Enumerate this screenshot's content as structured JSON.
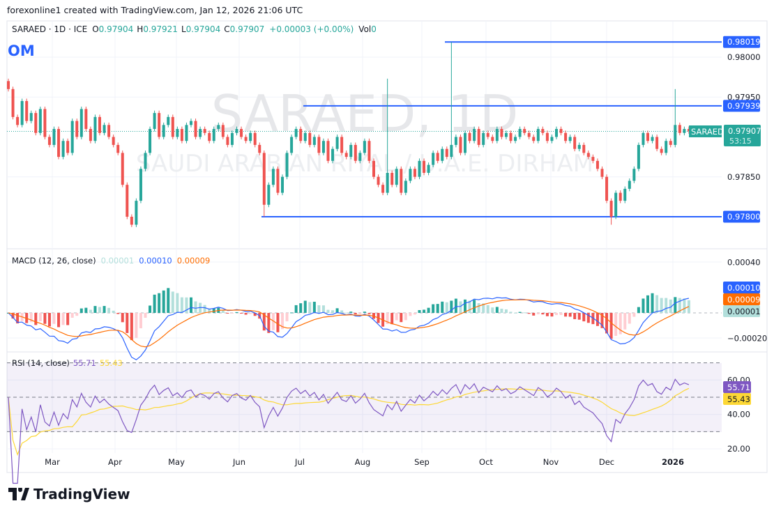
{
  "header": {
    "attribution": "forexonline1 created with TradingView.com, Jan 12, 2026 21:06 UTC"
  },
  "legend": {
    "symbol": "SARAED · 1D · ICE",
    "o_label": "O",
    "o": "0.97904",
    "h_label": "H",
    "h": "0.97921",
    "l_label": "L",
    "l": "0.97904",
    "c_label": "C",
    "c": "0.97907",
    "change": "+0.00003 (+0.00%)",
    "vol_label": "Vol",
    "vol": "0"
  },
  "logo_text": "OM",
  "watermark": {
    "title": "SARAED, 1D",
    "subtitle": "SAUDI ARABIAN RIYAL / U.A.E. DIRHAM"
  },
  "colors": {
    "up": "#26a69a",
    "down": "#ef5350",
    "line": "#2962ff",
    "macd": "#2962ff",
    "signal": "#ff6d00",
    "rsi": "#7e57c2",
    "rsi_ma": "#fdd835"
  },
  "chart_data": [
    {
      "type": "candlestick",
      "symbol": "SARAED",
      "price_ticks": [
        "0.98000",
        "0.97950",
        "0.97850"
      ],
      "x_ticks": [
        "Mar",
        "Apr",
        "May",
        "Jun",
        "Jul",
        "Aug",
        "Sep",
        "Oct",
        "Nov",
        "Dec",
        "2026"
      ],
      "closes": [
        0.9796,
        0.97925,
        0.97915,
        0.97945,
        0.9792,
        0.9793,
        0.97905,
        0.97935,
        0.979,
        0.9789,
        0.9791,
        0.97875,
        0.97895,
        0.9788,
        0.9792,
        0.979,
        0.97935,
        0.9791,
        0.97895,
        0.97925,
        0.97905,
        0.97915,
        0.979,
        0.9789,
        0.9788,
        0.9784,
        0.978,
        0.9779,
        0.9782,
        0.9786,
        0.9788,
        0.9791,
        0.9793,
        0.979,
        0.97915,
        0.97925,
        0.979,
        0.9791,
        0.97895,
        0.97915,
        0.9792,
        0.979,
        0.9791,
        0.97905,
        0.97895,
        0.9791,
        0.97915,
        0.979,
        0.9789,
        0.97905,
        0.9791,
        0.979,
        0.97895,
        0.97905,
        0.9789,
        0.9788,
        0.97815,
        0.9784,
        0.9786,
        0.9783,
        0.9785,
        0.9788,
        0.979,
        0.9791,
        0.97895,
        0.97905,
        0.9789,
        0.979,
        0.9788,
        0.97895,
        0.9787,
        0.97885,
        0.979,
        0.9788,
        0.97875,
        0.9789,
        0.9787,
        0.9788,
        0.97895,
        0.9787,
        0.9785,
        0.9784,
        0.9783,
        0.97855,
        0.9784,
        0.9786,
        0.9783,
        0.97845,
        0.9786,
        0.9785,
        0.9787,
        0.97855,
        0.97865,
        0.9788,
        0.9787,
        0.97885,
        0.97875,
        0.9789,
        0.979,
        0.9788,
        0.97905,
        0.97895,
        0.9791,
        0.9789,
        0.97905,
        0.979,
        0.97895,
        0.9791,
        0.979,
        0.97905,
        0.97895,
        0.979,
        0.9791,
        0.97905,
        0.979,
        0.97895,
        0.9791,
        0.97905,
        0.97895,
        0.979,
        0.9791,
        0.97905,
        0.97895,
        0.979,
        0.97885,
        0.9789,
        0.9788,
        0.97875,
        0.9787,
        0.9786,
        0.9785,
        0.9782,
        0.978,
        0.9783,
        0.9782,
        0.97835,
        0.97845,
        0.9786,
        0.9789,
        0.97905,
        0.97895,
        0.979,
        0.97885,
        0.9788,
        0.97895,
        0.9789,
        0.97915,
        0.97905,
        0.9791,
        0.97907
      ],
      "notable_wicks": [
        {
          "index": 83,
          "high": 0.97973
        },
        {
          "index": 97,
          "high": 0.98019
        },
        {
          "index": 146,
          "high": 0.9796
        },
        {
          "index": 132,
          "low": 0.9779
        },
        {
          "index": 56,
          "low": 0.978
        }
      ],
      "horizontal_lines": [
        {
          "price": 0.98019,
          "label": "0.98019"
        },
        {
          "price": 0.97939,
          "label": "0.97939"
        },
        {
          "price": 0.978,
          "label": "0.97800"
        }
      ],
      "last_price": {
        "symbol_tag": "SARAED",
        "value": "0.97907",
        "countdown": "53:15"
      }
    },
    {
      "type": "line",
      "name": "MACD (12, 26, close)",
      "legend_values": {
        "histogram": "0.00001",
        "macd": "0.00010",
        "signal": "0.00009"
      },
      "y_ticks": [
        "0.00040",
        "-0.00020"
      ],
      "ylim": [
        -0.00026,
        0.00046
      ]
    },
    {
      "type": "line",
      "name": "RSI (14, close)",
      "legend_values": {
        "rsi": "55.71",
        "rsi_ma": "55.43"
      },
      "y_ticks": [
        "60.00",
        "40.00",
        "20.00"
      ],
      "bands": [
        70,
        50,
        30
      ]
    }
  ],
  "footer": {
    "brand": "TradingView"
  }
}
